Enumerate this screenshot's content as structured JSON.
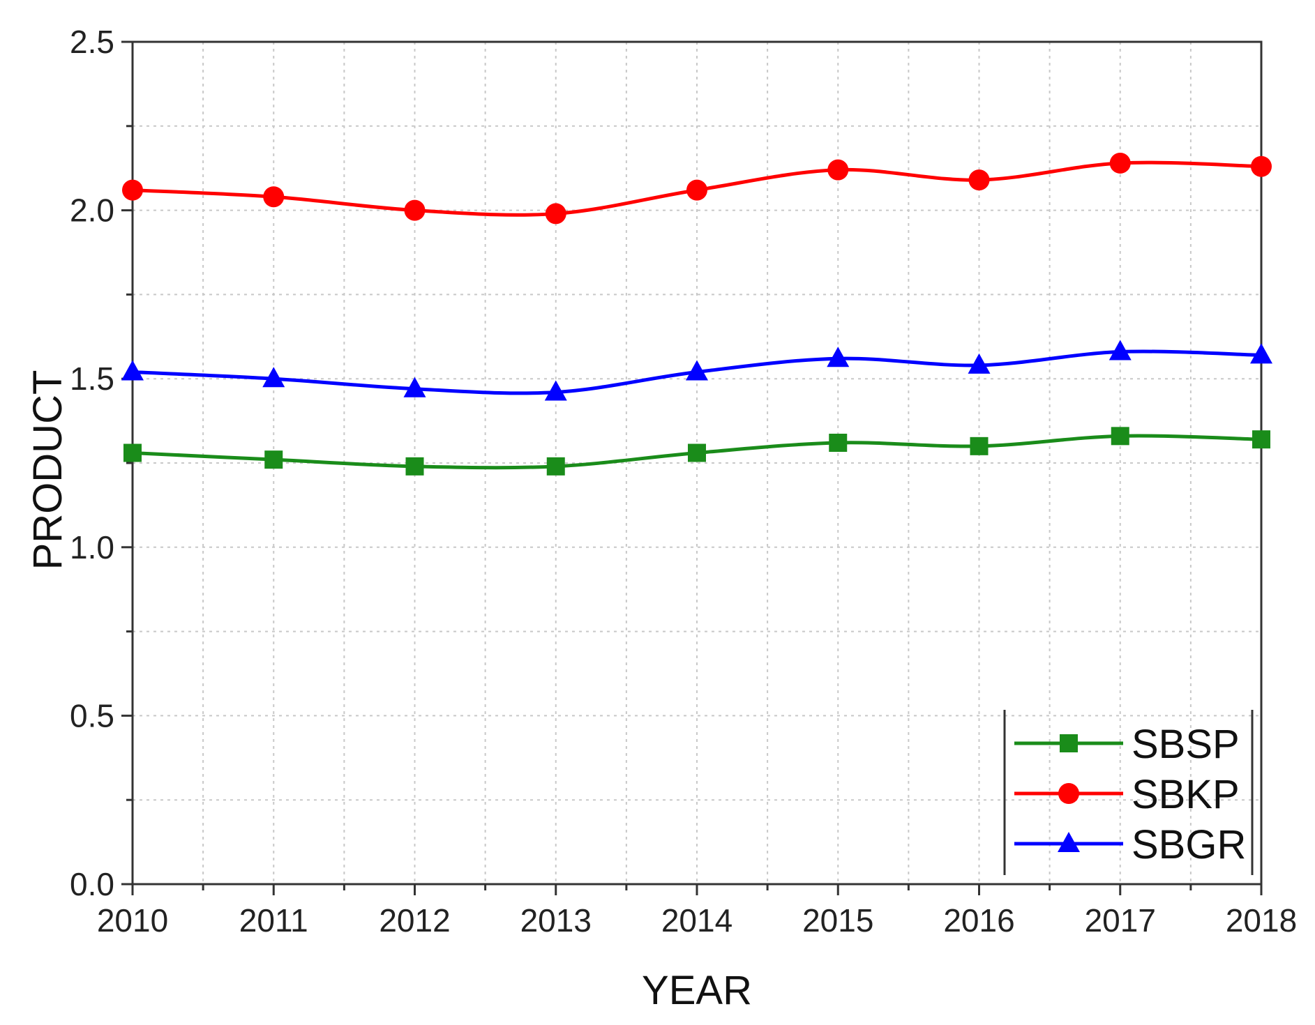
{
  "chart_data": {
    "type": "line",
    "xlabel": "YEAR",
    "ylabel": "PRODUCT",
    "x": [
      2010,
      2011,
      2012,
      2013,
      2014,
      2015,
      2016,
      2017,
      2018
    ],
    "xlim": [
      2010,
      2018
    ],
    "ylim": [
      0,
      2.5
    ],
    "y_ticks": [
      "0.0",
      "0.5",
      "1.0",
      "1.5",
      "2.0",
      "2.5"
    ],
    "x_ticks": [
      "2010",
      "2011",
      "2012",
      "2013",
      "2014",
      "2015",
      "2016",
      "2017",
      "2018"
    ],
    "grid": true,
    "legend_position": "bottom-right",
    "series": [
      {
        "name": "SBSP",
        "color": "#1a8c1a",
        "marker": "square",
        "values": [
          1.28,
          1.26,
          1.24,
          1.24,
          1.28,
          1.31,
          1.3,
          1.33,
          1.32
        ]
      },
      {
        "name": "SBKP",
        "color": "#ff0000",
        "marker": "circle",
        "values": [
          2.06,
          2.04,
          2.0,
          1.99,
          2.06,
          2.12,
          2.09,
          2.14,
          2.13
        ]
      },
      {
        "name": "SBGR",
        "color": "#0000ff",
        "marker": "triangle",
        "values": [
          1.52,
          1.5,
          1.47,
          1.46,
          1.52,
          1.56,
          1.54,
          1.58,
          1.57
        ]
      }
    ]
  }
}
